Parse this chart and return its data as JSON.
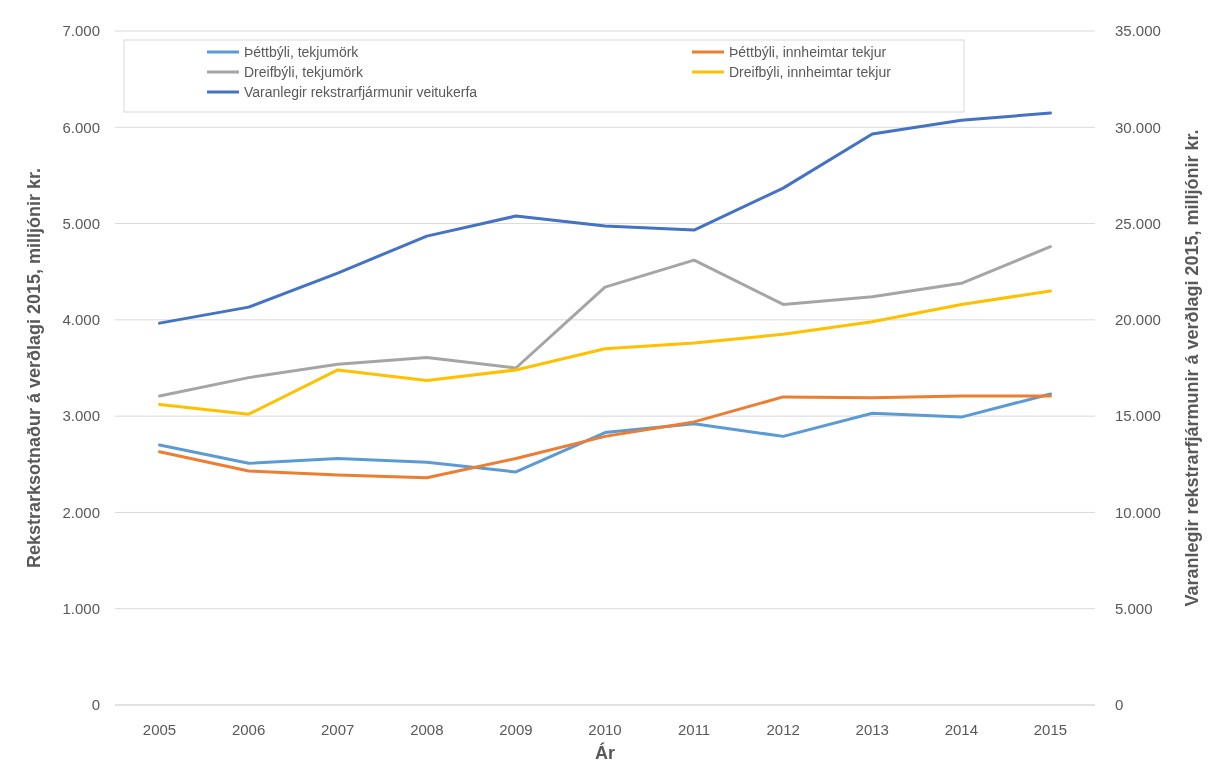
{
  "chart_data": {
    "type": "line",
    "xlabel": "Ár",
    "ylabel": "Rekstrarksotnaður á verðlagi 2015, milljónir kr.",
    "y2label": "Varanlegir rekstrarfjármunir á verðlagi 2015, milljónir kr.",
    "categories": [
      "2005",
      "2006",
      "2007",
      "2008",
      "2009",
      "2010",
      "2011",
      "2012",
      "2013",
      "2014",
      "2015"
    ],
    "series": [
      {
        "name": "Þéttbýli, tekjumörk",
        "color": "#5b9bd5",
        "values": [
          2700,
          2510,
          2560,
          2520,
          2420,
          2830,
          2920,
          2790,
          3030,
          2990,
          3230
        ]
      },
      {
        "name": "Þéttbýli, innheimtar tekjur",
        "color": "#ed7d31",
        "values": [
          2630,
          2430,
          2390,
          2360,
          2560,
          2790,
          2940,
          3200,
          3190,
          3210,
          3210
        ]
      },
      {
        "name": "Dreifbýli, tekjumörk",
        "color": "#a5a5a5",
        "values": [
          3210,
          3400,
          3540,
          3610,
          3500,
          4340,
          4620,
          4160,
          4240,
          4380,
          4760
        ]
      },
      {
        "name": "Dreifbýli, innheimtar tekjur",
        "color": "#ffc000",
        "values": [
          3120,
          3020,
          3480,
          3370,
          3480,
          3700,
          3760,
          3850,
          3980,
          4160,
          4300
        ]
      },
      {
        "name": "Varanlegir rekstrarfjármunir veitukerfa",
        "color": "#4472c4",
        "axis": "y2",
        "values": [
          19830,
          20660,
          22430,
          24350,
          25390,
          24870,
          24660,
          26840,
          29650,
          30370,
          30740
        ]
      }
    ],
    "ylim": [
      0,
      7000
    ],
    "yticks": [
      {
        "value": 0,
        "label": "0"
      },
      {
        "value": 1000,
        "label": "1.000"
      },
      {
        "value": 2000,
        "label": "2.000"
      },
      {
        "value": 3000,
        "label": "3.000"
      },
      {
        "value": 4000,
        "label": "4.000"
      },
      {
        "value": 5000,
        "label": "5.000"
      },
      {
        "value": 6000,
        "label": "6.000"
      },
      {
        "value": 7000,
        "label": "7.000"
      }
    ],
    "y2lim": [
      0,
      35000
    ],
    "y2ticks": [
      {
        "value": 0,
        "label": "0"
      },
      {
        "value": 5000,
        "label": "5.000"
      },
      {
        "value": 10000,
        "label": "10.000"
      },
      {
        "value": 15000,
        "label": "15.000"
      },
      {
        "value": 20000,
        "label": "20.000"
      },
      {
        "value": 25000,
        "label": "25.000"
      },
      {
        "value": 30000,
        "label": "30.000"
      },
      {
        "value": 35000,
        "label": "35.000"
      }
    ],
    "grid": "y",
    "legend": "top",
    "marker": "none",
    "line_style": "solid"
  }
}
